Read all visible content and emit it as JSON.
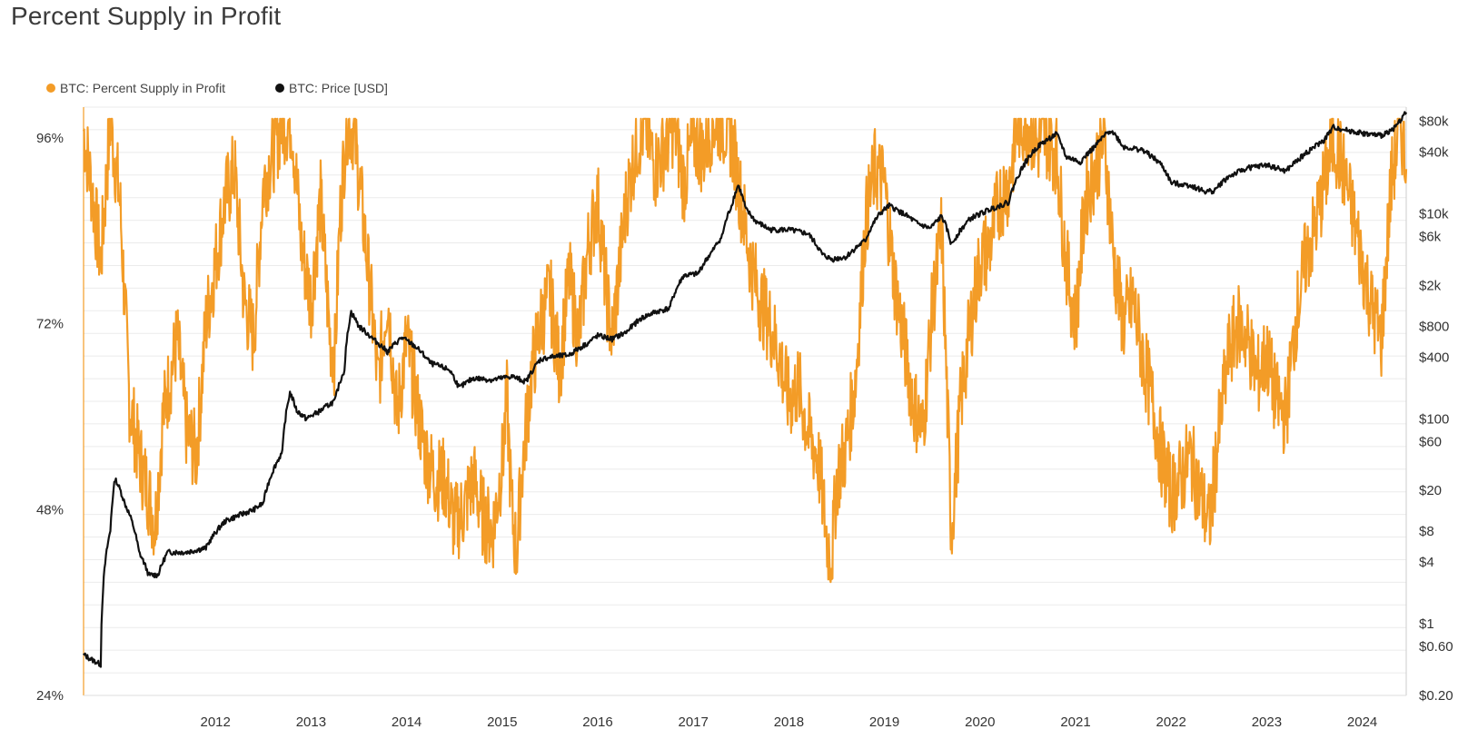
{
  "title": "Percent Supply in Profit",
  "colors": {
    "profit": "#F39C27",
    "price": "#111111",
    "grid": "#EBEBEB",
    "axis": "#F39C27"
  },
  "chart_data": {
    "type": "line",
    "title": "Percent Supply in Profit",
    "xlabel": "",
    "ylabel_left": "",
    "ylabel_right": "",
    "x_range": [
      2011.12,
      2024.96
    ],
    "x_ticks": [
      "2012",
      "2013",
      "2014",
      "2015",
      "2016",
      "2017",
      "2018",
      "2019",
      "2020",
      "2021",
      "2022",
      "2023",
      "2024"
    ],
    "y_left": {
      "range": [
        24,
        100
      ],
      "ticks": [
        "24%",
        "48%",
        "72%",
        "96%"
      ],
      "tick_values": [
        24,
        48,
        72,
        96
      ]
    },
    "y_right": {
      "scale": "log",
      "range": [
        0.2,
        110000
      ],
      "ticks": [
        "$0.20",
        "$0.60",
        "$1",
        "$4",
        "$8",
        "$20",
        "$60",
        "$100",
        "$400",
        "$800",
        "$2k",
        "$6k",
        "$10k",
        "$40k",
        "$80k"
      ],
      "tick_values": [
        0.2,
        0.6,
        1,
        4,
        8,
        20,
        60,
        100,
        400,
        800,
        2000,
        6000,
        10000,
        40000,
        80000
      ]
    },
    "legend": {
      "placement": "top-left"
    },
    "series": [
      {
        "name": "BTC: Percent Supply in Profit",
        "axis": "left",
        "color": "#F39C27",
        "points": [
          [
            2011.12,
            97
          ],
          [
            2011.2,
            90
          ],
          [
            2011.3,
            80
          ],
          [
            2011.4,
            98
          ],
          [
            2011.5,
            88
          ],
          [
            2011.6,
            62
          ],
          [
            2011.7,
            55
          ],
          [
            2011.8,
            50
          ],
          [
            2011.87,
            46
          ],
          [
            2011.95,
            60
          ],
          [
            2012.1,
            70
          ],
          [
            2012.2,
            58
          ],
          [
            2012.3,
            55
          ],
          [
            2012.4,
            72
          ],
          [
            2012.5,
            80
          ],
          [
            2012.6,
            88
          ],
          [
            2012.7,
            92
          ],
          [
            2012.8,
            75
          ],
          [
            2012.9,
            70
          ],
          [
            2013.0,
            90
          ],
          [
            2013.1,
            94
          ],
          [
            2013.2,
            98
          ],
          [
            2013.3,
            98
          ],
          [
            2013.4,
            82
          ],
          [
            2013.5,
            75
          ],
          [
            2013.6,
            88
          ],
          [
            2013.7,
            70
          ],
          [
            2013.75,
            68
          ],
          [
            2013.8,
            85
          ],
          [
            2013.87,
            98
          ],
          [
            2013.95,
            97
          ],
          [
            2014.05,
            85
          ],
          [
            2014.15,
            72
          ],
          [
            2014.2,
            64
          ],
          [
            2014.3,
            76
          ],
          [
            2014.4,
            60
          ],
          [
            2014.5,
            70
          ],
          [
            2014.6,
            62
          ],
          [
            2014.7,
            55
          ],
          [
            2014.8,
            52
          ],
          [
            2014.9,
            52
          ],
          [
            2015.0,
            46
          ],
          [
            2015.1,
            48
          ],
          [
            2015.2,
            52
          ],
          [
            2015.3,
            47
          ],
          [
            2015.4,
            45
          ],
          [
            2015.5,
            54
          ],
          [
            2015.55,
            62
          ],
          [
            2015.6,
            48
          ],
          [
            2015.65,
            42
          ],
          [
            2015.7,
            52
          ],
          [
            2015.8,
            65
          ],
          [
            2015.9,
            72
          ],
          [
            2016.0,
            76
          ],
          [
            2016.1,
            66
          ],
          [
            2016.2,
            78
          ],
          [
            2016.3,
            70
          ],
          [
            2016.4,
            82
          ],
          [
            2016.5,
            88
          ],
          [
            2016.6,
            75
          ],
          [
            2016.65,
            70
          ],
          [
            2016.8,
            88
          ],
          [
            2016.9,
            95
          ],
          [
            2017.0,
            98
          ],
          [
            2017.1,
            92
          ],
          [
            2017.2,
            95
          ],
          [
            2017.3,
            98
          ],
          [
            2017.4,
            90
          ],
          [
            2017.5,
            96
          ],
          [
            2017.6,
            94
          ],
          [
            2017.7,
            98
          ],
          [
            2017.8,
            98
          ],
          [
            2017.9,
            96
          ],
          [
            2018.0,
            88
          ],
          [
            2018.1,
            80
          ],
          [
            2018.2,
            75
          ],
          [
            2018.3,
            72
          ],
          [
            2018.4,
            68
          ],
          [
            2018.5,
            62
          ],
          [
            2018.6,
            64
          ],
          [
            2018.7,
            58
          ],
          [
            2018.8,
            55
          ],
          [
            2018.85,
            50
          ],
          [
            2018.9,
            44
          ],
          [
            2018.95,
            42
          ],
          [
            2019.0,
            52
          ],
          [
            2019.1,
            56
          ],
          [
            2019.2,
            65
          ],
          [
            2019.3,
            85
          ],
          [
            2019.4,
            92
          ],
          [
            2019.5,
            90
          ],
          [
            2019.6,
            78
          ],
          [
            2019.7,
            70
          ],
          [
            2019.8,
            62
          ],
          [
            2019.9,
            58
          ],
          [
            2020.0,
            74
          ],
          [
            2020.1,
            84
          ],
          [
            2020.2,
            45
          ],
          [
            2020.3,
            62
          ],
          [
            2020.4,
            72
          ],
          [
            2020.5,
            80
          ],
          [
            2020.6,
            82
          ],
          [
            2020.7,
            88
          ],
          [
            2020.8,
            90
          ],
          [
            2020.9,
            98
          ],
          [
            2021.0,
            98
          ],
          [
            2021.1,
            95
          ],
          [
            2021.2,
            96
          ],
          [
            2021.3,
            94
          ],
          [
            2021.4,
            80
          ],
          [
            2021.5,
            72
          ],
          [
            2021.6,
            88
          ],
          [
            2021.7,
            92
          ],
          [
            2021.8,
            96
          ],
          [
            2021.9,
            80
          ],
          [
            2022.0,
            72
          ],
          [
            2022.1,
            75
          ],
          [
            2022.2,
            68
          ],
          [
            2022.3,
            62
          ],
          [
            2022.4,
            55
          ],
          [
            2022.5,
            50
          ],
          [
            2022.6,
            52
          ],
          [
            2022.7,
            55
          ],
          [
            2022.8,
            50
          ],
          [
            2022.9,
            46
          ],
          [
            2023.0,
            58
          ],
          [
            2023.1,
            68
          ],
          [
            2023.2,
            72
          ],
          [
            2023.3,
            70
          ],
          [
            2023.4,
            65
          ],
          [
            2023.5,
            68
          ],
          [
            2023.6,
            62
          ],
          [
            2023.7,
            60
          ],
          [
            2023.8,
            72
          ],
          [
            2023.9,
            80
          ],
          [
            2024.0,
            84
          ],
          [
            2024.1,
            90
          ],
          [
            2024.2,
            96
          ],
          [
            2024.3,
            92
          ],
          [
            2024.4,
            86
          ],
          [
            2024.5,
            80
          ],
          [
            2024.6,
            74
          ],
          [
            2024.7,
            70
          ],
          [
            2024.8,
            90
          ],
          [
            2024.9,
            98
          ],
          [
            2024.96,
            92
          ]
        ]
      },
      {
        "name": "BTC: Price [USD]",
        "axis": "right",
        "color": "#111111",
        "points": [
          [
            2011.12,
            0.5
          ],
          [
            2011.2,
            0.45
          ],
          [
            2011.3,
            0.4
          ],
          [
            2011.4,
            8
          ],
          [
            2011.45,
            26
          ],
          [
            2011.55,
            15
          ],
          [
            2011.7,
            5
          ],
          [
            2011.8,
            3
          ],
          [
            2011.9,
            3
          ],
          [
            2012.0,
            5
          ],
          [
            2012.2,
            5
          ],
          [
            2012.4,
            5.5
          ],
          [
            2012.6,
            10
          ],
          [
            2012.8,
            12
          ],
          [
            2012.9,
            13
          ],
          [
            2013.0,
            15
          ],
          [
            2013.2,
            47
          ],
          [
            2013.28,
            180
          ],
          [
            2013.35,
            120
          ],
          [
            2013.45,
            100
          ],
          [
            2013.6,
            120
          ],
          [
            2013.75,
            150
          ],
          [
            2013.85,
            300
          ],
          [
            2013.92,
            1100
          ],
          [
            2014.0,
            800
          ],
          [
            2014.15,
            600
          ],
          [
            2014.3,
            450
          ],
          [
            2014.45,
            620
          ],
          [
            2014.6,
            500
          ],
          [
            2014.75,
            350
          ],
          [
            2014.95,
            300
          ],
          [
            2015.05,
            200
          ],
          [
            2015.2,
            250
          ],
          [
            2015.4,
            240
          ],
          [
            2015.6,
            260
          ],
          [
            2015.75,
            230
          ],
          [
            2015.9,
            380
          ],
          [
            2016.0,
            400
          ],
          [
            2016.2,
            420
          ],
          [
            2016.4,
            550
          ],
          [
            2016.5,
            650
          ],
          [
            2016.65,
            600
          ],
          [
            2016.8,
            700
          ],
          [
            2016.95,
            950
          ],
          [
            2017.1,
            1100
          ],
          [
            2017.25,
            1200
          ],
          [
            2017.4,
            2500
          ],
          [
            2017.55,
            2600
          ],
          [
            2017.7,
            4300
          ],
          [
            2017.8,
            6000
          ],
          [
            2017.9,
            12000
          ],
          [
            2017.97,
            19000
          ],
          [
            2018.05,
            11000
          ],
          [
            2018.15,
            8500
          ],
          [
            2018.3,
            7000
          ],
          [
            2018.5,
            7000
          ],
          [
            2018.7,
            6400
          ],
          [
            2018.85,
            4000
          ],
          [
            2018.95,
            3600
          ],
          [
            2019.1,
            3800
          ],
          [
            2019.3,
            5500
          ],
          [
            2019.45,
            10000
          ],
          [
            2019.55,
            12000
          ],
          [
            2019.7,
            10000
          ],
          [
            2019.85,
            8000
          ],
          [
            2019.98,
            7200
          ],
          [
            2020.1,
            9500
          ],
          [
            2020.2,
            5000
          ],
          [
            2020.4,
            9000
          ],
          [
            2020.6,
            11000
          ],
          [
            2020.8,
            13000
          ],
          [
            2020.95,
            29000
          ],
          [
            2021.1,
            45000
          ],
          [
            2021.3,
            60000
          ],
          [
            2021.4,
            36000
          ],
          [
            2021.55,
            32000
          ],
          [
            2021.7,
            45000
          ],
          [
            2021.87,
            66000
          ],
          [
            2022.0,
            45000
          ],
          [
            2022.2,
            42000
          ],
          [
            2022.4,
            30000
          ],
          [
            2022.5,
            20000
          ],
          [
            2022.7,
            19000
          ],
          [
            2022.85,
            16500
          ],
          [
            2022.95,
            16800
          ],
          [
            2023.1,
            23000
          ],
          [
            2023.3,
            28000
          ],
          [
            2023.5,
            30000
          ],
          [
            2023.7,
            26000
          ],
          [
            2023.85,
            35000
          ],
          [
            2023.97,
            43000
          ],
          [
            2024.1,
            52000
          ],
          [
            2024.2,
            70000
          ],
          [
            2024.35,
            65000
          ],
          [
            2024.55,
            60000
          ],
          [
            2024.7,
            58000
          ],
          [
            2024.85,
            70000
          ],
          [
            2024.96,
            98000
          ]
        ]
      }
    ]
  }
}
